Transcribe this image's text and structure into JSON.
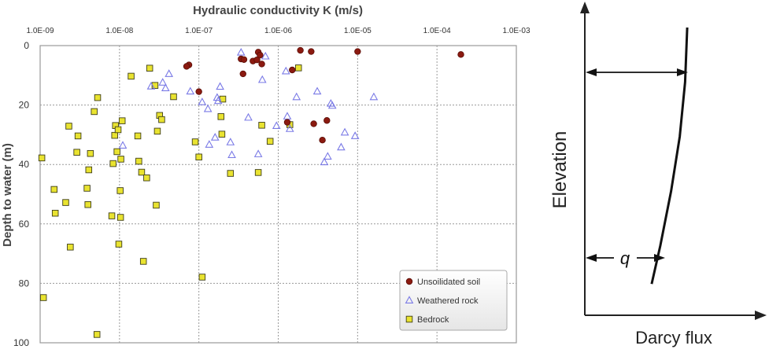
{
  "chart_data": [
    {
      "type": "scatter",
      "title": "Hydraulic conductivity K (m/s)",
      "xlabel": "Hydraulic conductivity K (m/s)",
      "ylabel": "Depth to water (m)",
      "x_scale": "log",
      "xlim": [
        1e-09,
        0.001
      ],
      "ylim": [
        0,
        100
      ],
      "y_inverted": true,
      "grid": true,
      "legend_position": "bottom-right",
      "x_ticks": [
        "1.0E-09",
        "1.0E-08",
        "1.0E-07",
        "1.0E-06",
        "1.0E-05",
        "1.0E-04",
        "1.0E-03"
      ],
      "y_ticks": [
        "0",
        "20",
        "40",
        "60",
        "80",
        "100"
      ],
      "series": [
        {
          "name": "Unsoilidated soil",
          "marker": "circle",
          "color": "#8b1a10",
          "points": [
            [
              7.5e-08,
              6.5
            ],
            [
              7e-08,
              7
            ],
            [
              1e-07,
              15.5
            ],
            [
              3.4e-07,
              4.5
            ],
            [
              3.7e-07,
              4.7
            ],
            [
              3.6e-07,
              9.5
            ],
            [
              4.8e-07,
              5.2
            ],
            [
              5.4e-07,
              4.8
            ],
            [
              5.6e-07,
              2.2
            ],
            [
              5.9e-07,
              3.2
            ],
            [
              6.2e-07,
              6.2
            ],
            [
              1.5e-06,
              8.2
            ],
            [
              1.9e-06,
              1.6
            ],
            [
              2.6e-06,
              2.0
            ],
            [
              1.3e-06,
              25.8
            ],
            [
              2.8e-06,
              26.3
            ],
            [
              3.6e-06,
              31.8
            ],
            [
              4.1e-06,
              25.2
            ],
            [
              1e-05,
              2.0
            ],
            [
              0.0002,
              3.0
            ]
          ]
        },
        {
          "name": "Weathered rock",
          "marker": "triangle",
          "color": "#7a7ae6",
          "points": [
            [
              1.1e-08,
              33.6
            ],
            [
              2.5e-08,
              13.7
            ],
            [
              3.5e-08,
              12.4
            ],
            [
              3.8e-08,
              14.3
            ],
            [
              4.2e-08,
              9.5
            ],
            [
              7.8e-08,
              15.4
            ],
            [
              1.1e-07,
              19.0
            ],
            [
              1.3e-07,
              21.3
            ],
            [
              1.35e-07,
              33.3
            ],
            [
              1.6e-07,
              30.9
            ],
            [
              1.7e-07,
              17.5
            ],
            [
              1.75e-07,
              18.6
            ],
            [
              1.85e-07,
              13.8
            ],
            [
              2.5e-07,
              32.5
            ],
            [
              2.6e-07,
              36.8
            ],
            [
              3.4e-07,
              2.3
            ],
            [
              4.2e-07,
              24.2
            ],
            [
              5.6e-07,
              36.5
            ],
            [
              6.3e-07,
              11.5
            ],
            [
              6.9e-07,
              3.6
            ],
            [
              9.5e-07,
              27.0
            ],
            [
              1.25e-06,
              8.6
            ],
            [
              1.3e-06,
              23.8
            ],
            [
              1.4e-06,
              28.0
            ],
            [
              1.7e-06,
              17.3
            ],
            [
              3.1e-06,
              15.4
            ],
            [
              3.8e-06,
              39.2
            ],
            [
              4.2e-06,
              37.3
            ],
            [
              4.6e-06,
              19.5
            ],
            [
              4.8e-06,
              20.2
            ],
            [
              6.2e-06,
              34.2
            ],
            [
              6.9e-06,
              29.2
            ],
            [
              9.3e-06,
              30.4
            ],
            [
              1.6e-05,
              17.3
            ]
          ]
        },
        {
          "name": "Bedrock",
          "marker": "square",
          "color": "#e9e330",
          "points": [
            [
              1.1e-09,
              84.8
            ],
            [
              1.05e-09,
              37.8
            ],
            [
              1.5e-09,
              48.4
            ],
            [
              1.55e-09,
              56.4
            ],
            [
              2.1e-09,
              52.8
            ],
            [
              2.3e-09,
              27.1
            ],
            [
              2.4e-09,
              67.8
            ],
            [
              2.9e-09,
              35.9
            ],
            [
              3e-09,
              30.4
            ],
            [
              3.9e-09,
              48.0
            ],
            [
              4e-09,
              53.5
            ],
            [
              4.1e-09,
              41.8
            ],
            [
              4.3e-09,
              36.3
            ],
            [
              4.8e-09,
              22.2
            ],
            [
              5.3e-09,
              17.5
            ],
            [
              5.2e-09,
              97.2
            ],
            [
              8e-09,
              57.3
            ],
            [
              8.3e-09,
              39.7
            ],
            [
              8.7e-09,
              30.2
            ],
            [
              8.9e-09,
              26.9
            ],
            [
              9.3e-09,
              35.7
            ],
            [
              9.6e-09,
              28.3
            ],
            [
              9.8e-09,
              66.8
            ],
            [
              1.02e-08,
              48.8
            ],
            [
              1.03e-08,
              57.8
            ],
            [
              1.04e-08,
              38.2
            ],
            [
              1.08e-08,
              25.3
            ],
            [
              1.4e-08,
              10.3
            ],
            [
              1.7e-08,
              30.4
            ],
            [
              1.75e-08,
              38.9
            ],
            [
              1.9e-08,
              42.6
            ],
            [
              2e-08,
              72.6
            ],
            [
              2.2e-08,
              44.5
            ],
            [
              2.4e-08,
              7.6
            ],
            [
              2.8e-08,
              13.4
            ],
            [
              2.9e-08,
              53.7
            ],
            [
              3e-08,
              28.8
            ],
            [
              3.2e-08,
              23.5
            ],
            [
              3.4e-08,
              24.9
            ],
            [
              4.8e-08,
              17.2
            ],
            [
              9e-08,
              32.4
            ],
            [
              1e-07,
              37.5
            ],
            [
              1.1e-07,
              77.9
            ],
            [
              1.9e-07,
              23.9
            ],
            [
              1.95e-07,
              29.8
            ],
            [
              2e-07,
              18.0
            ],
            [
              2.5e-07,
              43.0
            ],
            [
              5.6e-07,
              42.7
            ],
            [
              6.2e-07,
              26.8
            ],
            [
              7.9e-07,
              32.2
            ],
            [
              1.4e-06,
              26.6
            ],
            [
              1.8e-06,
              7.5
            ]
          ]
        }
      ]
    },
    {
      "type": "line",
      "xlabel": "Darcy flux",
      "ylabel": "Elevation",
      "annotation": "q",
      "series": [
        {
          "x_relative": [
            0.95,
            0.93,
            0.88,
            0.8,
            0.7,
            0.62
          ],
          "y_relative": [
            1.0,
            0.8,
            0.6,
            0.4,
            0.2,
            0.06
          ]
        }
      ],
      "arrows": [
        "top-width",
        "bottom-q"
      ]
    }
  ]
}
